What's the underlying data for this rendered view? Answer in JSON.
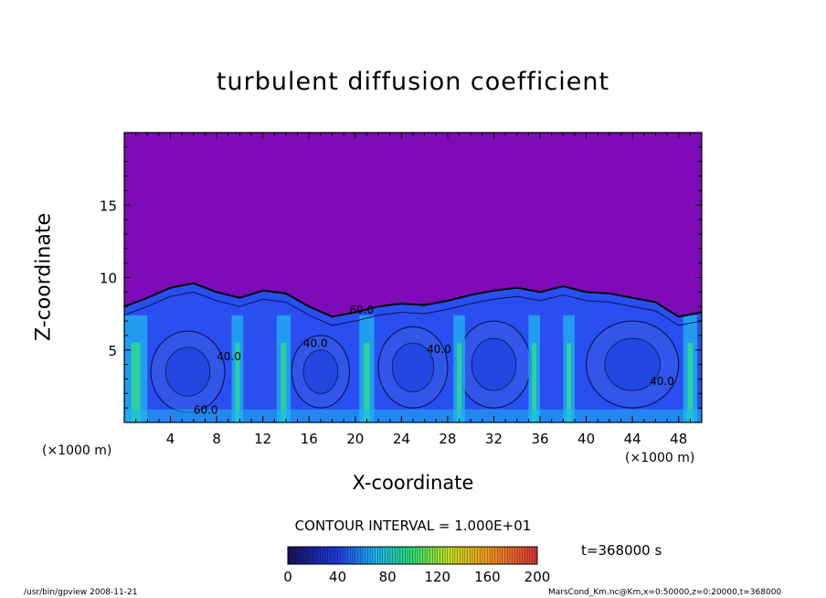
{
  "chart_data": {
    "type": "heatmap",
    "title": "turbulent diffusion coefficient",
    "xlabel": "X-coordinate",
    "ylabel": "Z-coordinate",
    "x_unit": "(×1000 m)",
    "z_unit": "(×1000 m)",
    "xlim": [
      0,
      50
    ],
    "ylim": [
      0,
      20
    ],
    "x_ticks": [
      4,
      8,
      12,
      16,
      20,
      24,
      28,
      32,
      36,
      40,
      44,
      48
    ],
    "y_ticks": [
      5,
      10,
      15
    ],
    "contour_interval_label": "CONTOUR INTERVAL = 1.000E+01",
    "contour_labels": [
      {
        "text": "60.0",
        "x": 6,
        "z": 0.6
      },
      {
        "text": "40.0",
        "x": 8,
        "z": 4.3
      },
      {
        "text": "40.0",
        "x": 15.5,
        "z": 5.2
      },
      {
        "text": "40.0",
        "x": 26.2,
        "z": 4.8
      },
      {
        "text": "60.0",
        "x": 19.5,
        "z": 7.5
      },
      {
        "text": "40.0",
        "x": 45.5,
        "z": 2.6
      }
    ],
    "colorbar": {
      "min": 0,
      "max": 200,
      "ticks": [
        0,
        40,
        80,
        120,
        160,
        200
      ]
    },
    "colors": {
      "background": "#7f0ab8",
      "low": "#2a4ff0",
      "mid": "#1fb6f2",
      "high": "#2ee08a"
    },
    "boundary_layer_top": [
      [
        0,
        8.0
      ],
      [
        2,
        8.6
      ],
      [
        4,
        9.3
      ],
      [
        6,
        9.6
      ],
      [
        8,
        9.0
      ],
      [
        10,
        8.6
      ],
      [
        12,
        9.1
      ],
      [
        14,
        8.9
      ],
      [
        16,
        8.0
      ],
      [
        18,
        7.3
      ],
      [
        20,
        7.6
      ],
      [
        22,
        8.0
      ],
      [
        24,
        8.2
      ],
      [
        26,
        8.1
      ],
      [
        28,
        8.4
      ],
      [
        30,
        8.8
      ],
      [
        32,
        9.1
      ],
      [
        34,
        9.3
      ],
      [
        36,
        9.0
      ],
      [
        38,
        9.4
      ],
      [
        40,
        9.0
      ],
      [
        42,
        8.9
      ],
      [
        44,
        8.6
      ],
      [
        46,
        8.3
      ],
      [
        48,
        7.3
      ],
      [
        50,
        7.6
      ]
    ],
    "time_label": "t=368000 s"
  },
  "footer": {
    "left": "/usr/bin/gpview   2008-11-21",
    "right": "MarsCond_Km.nc@Km,x=0:50000,z=0:20000,t=368000"
  }
}
